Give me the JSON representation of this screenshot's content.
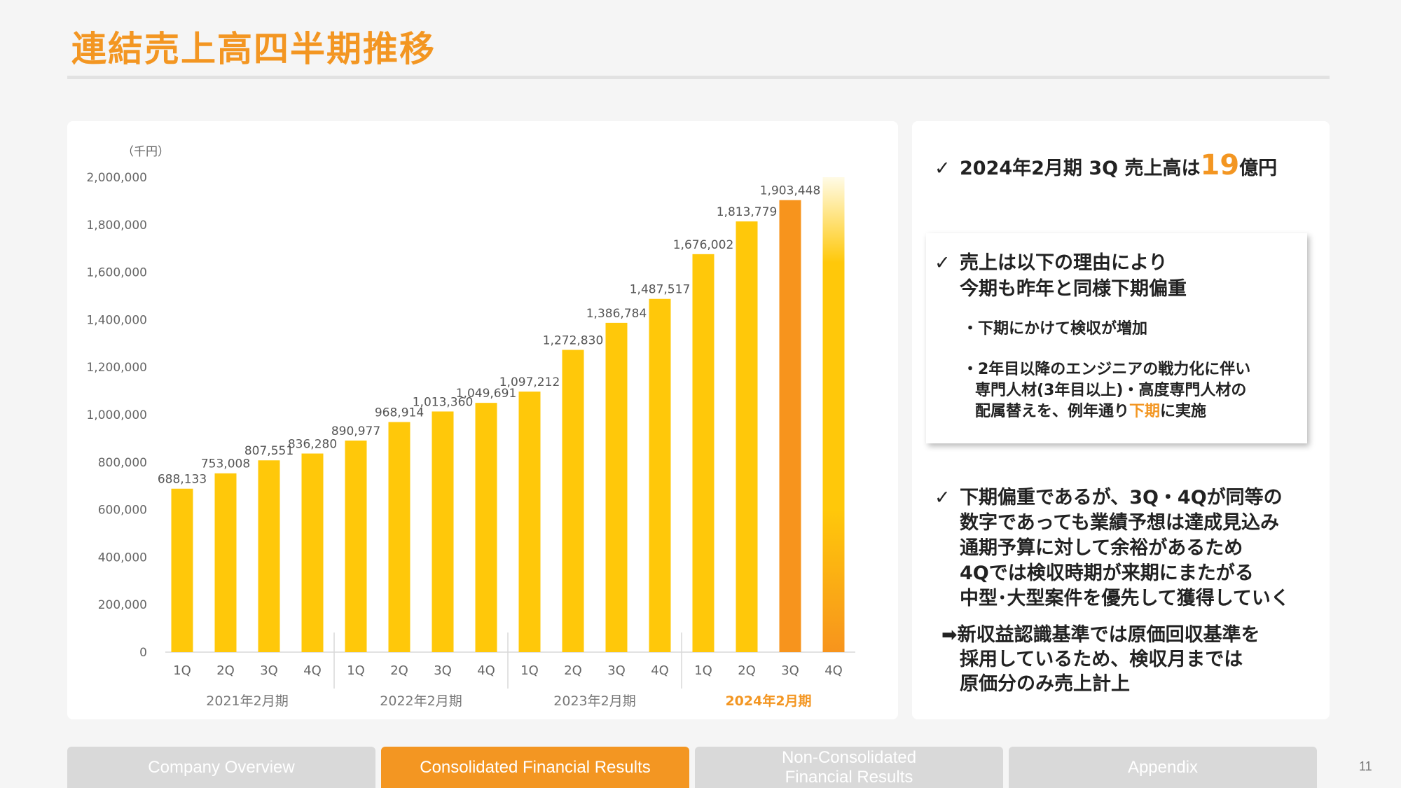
{
  "title": "連結売上高四半期推移",
  "chart_data": {
    "type": "bar",
    "unit_label": "（千円）",
    "ylim": [
      0,
      2000000
    ],
    "y_ticks": [
      "0",
      "200,000",
      "400,000",
      "600,000",
      "800,000",
      "1,000,000",
      "1,200,000",
      "1,400,000",
      "1,600,000",
      "1,800,000",
      "2,000,000"
    ],
    "categories": [
      "1Q",
      "2Q",
      "3Q",
      "4Q",
      "1Q",
      "2Q",
      "3Q",
      "4Q",
      "1Q",
      "2Q",
      "3Q",
      "4Q",
      "1Q",
      "2Q",
      "3Q",
      "4Q"
    ],
    "groups": [
      "2021年2月期",
      "2022年2月期",
      "2023年2月期",
      "2024年2月期"
    ],
    "values": [
      688133,
      753008,
      807551,
      836280,
      890977,
      968914,
      1013360,
      1049691,
      1097212,
      1272830,
      1386784,
      1487517,
      1676002,
      1813779,
      1903448,
      2000000
    ],
    "value_labels": [
      "688,133",
      "753,008",
      "807,551",
      "836,280",
      "890,977",
      "968,914",
      "1,013,360",
      "1,049,691",
      "1,097,212",
      "1,272,830",
      "1,386,784",
      "1,487,517",
      "1,676,002",
      "1,813,779",
      "1,903,448",
      ""
    ],
    "colors": {
      "bar": "#ffc80a",
      "actual_highlight": "#f7941d",
      "forecast_top": "#fffbe6",
      "forecast_mid": "#ffc80a",
      "forecast_bottom": "#f7941d",
      "current_year_label": "#f39622"
    },
    "highlight_index": 14,
    "forecast_index": 15,
    "current_group_index": 3
  },
  "summary": {
    "check": "✓",
    "prefix": "2024年2月期 3Q 売上高は",
    "number": "19",
    "suffix": "億円"
  },
  "reasons": {
    "check": "✓",
    "head_line1": "売上は以下の理由により",
    "head_line2": "今期も昨年と同様下期偏重",
    "bullet1": "・下期にかけて検収が増加",
    "bullet2_line1": "・2年目以降のエンジニアの戦力化に伴い",
    "bullet2_line2": "専門人材(3年目以上)・高度専門人材の",
    "bullet2_line3_pre": "配属替えを、例年通り",
    "bullet2_line3_hl": "下期",
    "bullet2_line3_post": "に実施"
  },
  "outlook": {
    "check": "✓",
    "line1": "下期偏重であるが、3Q・4Qが同等の",
    "line2": "数字であっても業績予想は達成見込み",
    "line3": "通期予算に対して余裕があるため",
    "line4": "4Qでは検収時期が来期にまたがる",
    "line5": "中型･大型案件を優先して獲得していく"
  },
  "note": {
    "arrow": "➡",
    "line1": "新収益認識基準では原価回収基準を",
    "line2": "採用しているため、検収月までは",
    "line3": "原価分のみ売上計上"
  },
  "nav": {
    "tab1": "Company Overview",
    "tab2": "Consolidated Financial Results",
    "tab3_line1": "Non-Consolidated",
    "tab3_line2": "Financial Results",
    "tab4": "Appendix"
  },
  "page_number": "11"
}
